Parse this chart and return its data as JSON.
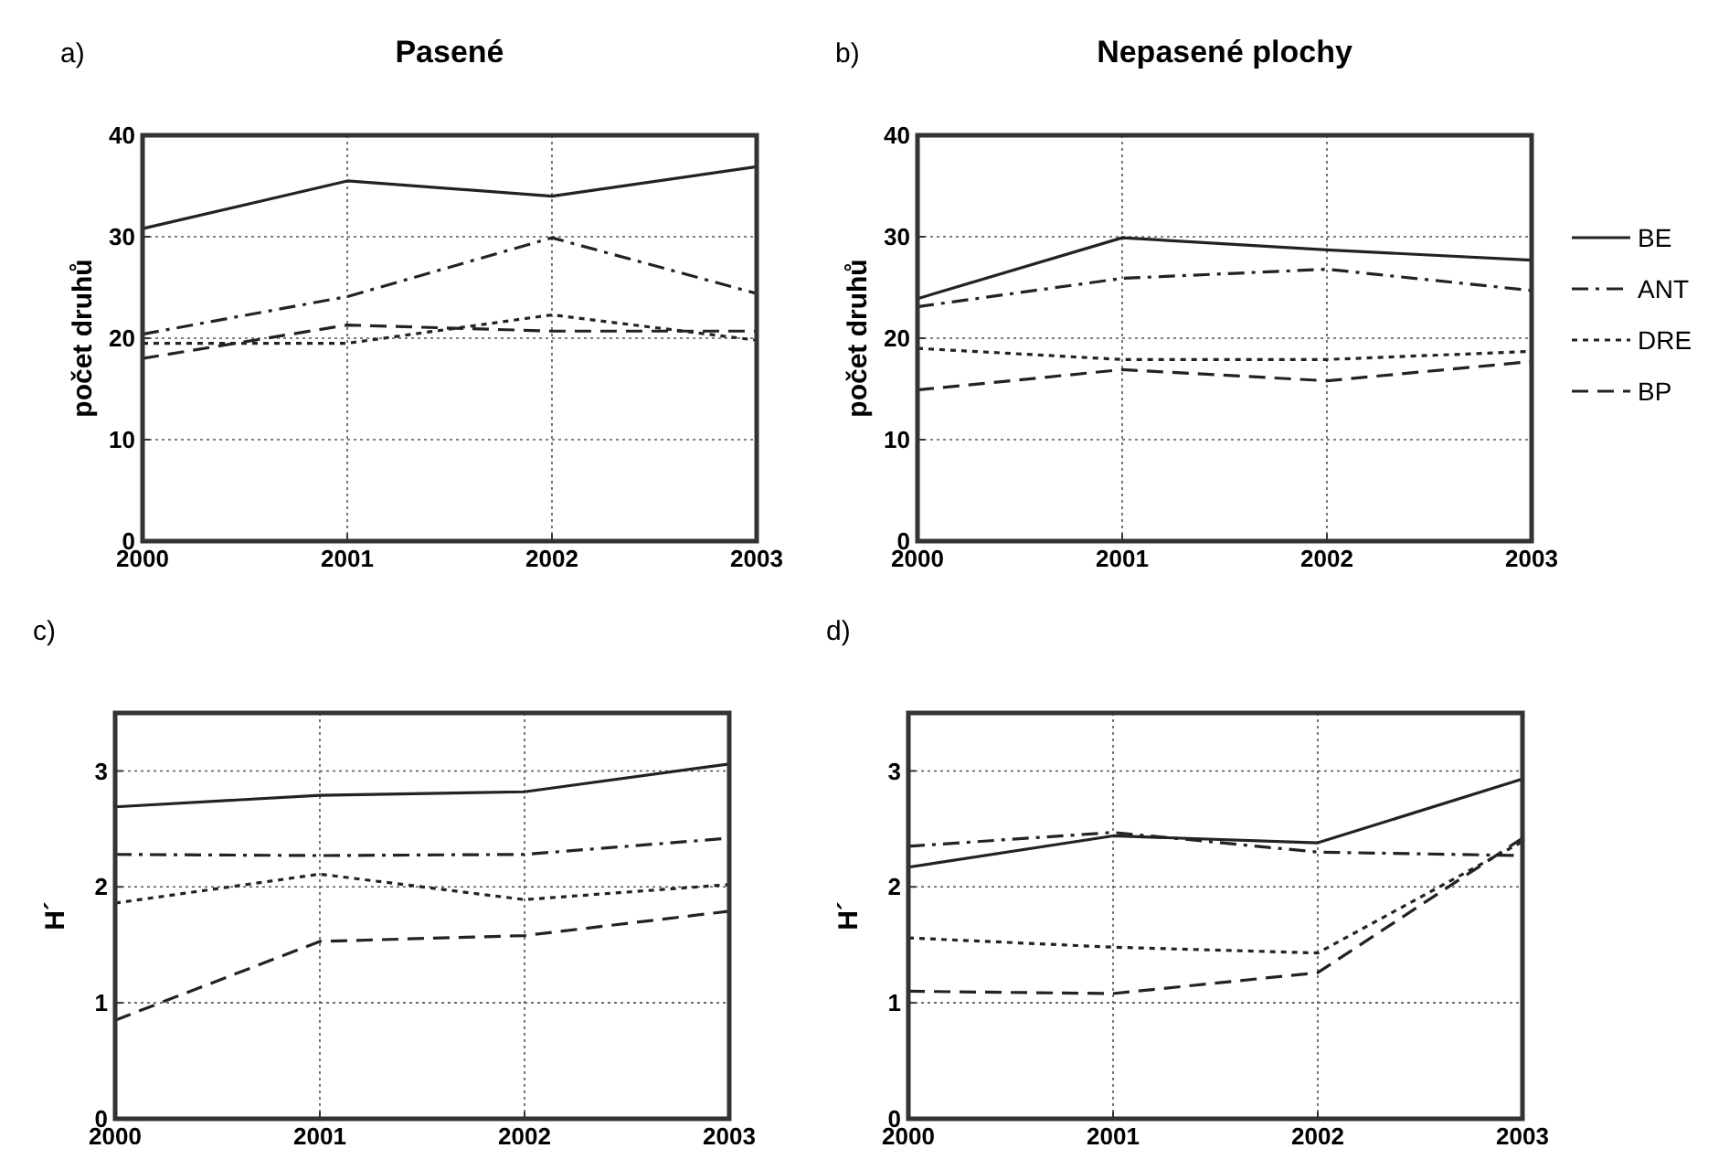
{
  "chart_data": [
    {
      "type": "line",
      "title": "Pasené",
      "annotations": [
        "a)"
      ],
      "ylabel": "počet druhů",
      "x": [
        2000,
        2001,
        2002,
        2003
      ],
      "xlim": [
        2000,
        2003
      ],
      "xticks": [
        2000,
        2001,
        2002,
        2003
      ],
      "ylim": [
        0,
        40
      ],
      "yticks": [
        0,
        10,
        20,
        30,
        40
      ],
      "grid": true,
      "legend": false,
      "series": [
        {
          "color": "#222222",
          "line_style": "solid",
          "values": [
            30.8,
            35.5,
            34,
            36.9
          ]
        },
        {
          "color": "#222222",
          "line_style": "dashdot",
          "values": [
            20.4,
            24.1,
            29.9,
            24.4
          ]
        },
        {
          "color": "#222222",
          "line_style": "dotted",
          "values": [
            19.5,
            19.5,
            22.3,
            19.8
          ]
        },
        {
          "color": "#222222",
          "line_style": "dashed",
          "values": [
            18,
            21.3,
            20.7,
            20.7
          ]
        }
      ]
    },
    {
      "type": "line",
      "title": "Nepasené plochy",
      "annotations": [
        "b)"
      ],
      "ylabel": "počet druhů",
      "x": [
        2000,
        2001,
        2002,
        2003
      ],
      "xlim": [
        2000,
        2003
      ],
      "xticks": [
        2000,
        2001,
        2002,
        2003
      ],
      "ylim": [
        0,
        40
      ],
      "yticks": [
        0,
        10,
        20,
        30,
        40
      ],
      "grid": true,
      "legend": "right",
      "series": [
        {
          "name": "BE",
          "color": "#222222",
          "line_style": "solid",
          "values": [
            23.9,
            29.9,
            28.7,
            27.7
          ]
        },
        {
          "name": "ANT",
          "color": "#222222",
          "line_style": "dashdot",
          "values": [
            23.1,
            25.9,
            26.8,
            24.7
          ]
        },
        {
          "name": "DRE",
          "color": "#222222",
          "line_style": "dotted",
          "values": [
            19,
            17.9,
            17.9,
            18.7
          ]
        },
        {
          "name": "BP",
          "color": "#222222",
          "line_style": "dashed",
          "values": [
            14.9,
            16.9,
            15.8,
            17.7
          ]
        }
      ]
    },
    {
      "type": "line",
      "annotations": [
        "c)"
      ],
      "ylabel": "H´",
      "x": [
        2000,
        2001,
        2002,
        2003
      ],
      "xlim": [
        2000,
        2003
      ],
      "xticks": [
        2000,
        2001,
        2002,
        2003
      ],
      "ylim": [
        0,
        3.5
      ],
      "yticks": [
        0,
        1,
        2,
        3
      ],
      "grid": true,
      "legend": false,
      "series": [
        {
          "color": "#222222",
          "line_style": "solid",
          "values": [
            2.69,
            2.79,
            2.82,
            3.06
          ]
        },
        {
          "color": "#222222",
          "line_style": "dashdot",
          "values": [
            2.28,
            2.27,
            2.28,
            2.42
          ]
        },
        {
          "color": "#222222",
          "line_style": "dotted",
          "values": [
            1.86,
            2.11,
            1.89,
            2.02
          ]
        },
        {
          "color": "#222222",
          "line_style": "dashed",
          "values": [
            0.85,
            1.53,
            1.58,
            1.79
          ]
        }
      ]
    },
    {
      "type": "line",
      "annotations": [
        "d)"
      ],
      "ylabel": "H´",
      "x": [
        2000,
        2001,
        2002,
        2003
      ],
      "xlim": [
        2000,
        2003
      ],
      "xticks": [
        2000,
        2001,
        2002,
        2003
      ],
      "ylim": [
        0,
        3.5
      ],
      "yticks": [
        0,
        1,
        2,
        3
      ],
      "grid": true,
      "legend": false,
      "series": [
        {
          "color": "#222222",
          "line_style": "solid",
          "values": [
            2.17,
            2.44,
            2.38,
            2.93
          ]
        },
        {
          "color": "#222222",
          "line_style": "dashdot",
          "values": [
            2.35,
            2.47,
            2.3,
            2.27
          ]
        },
        {
          "color": "#222222",
          "line_style": "dotted",
          "values": [
            1.56,
            1.48,
            1.43,
            2.39
          ]
        },
        {
          "color": "#222222",
          "line_style": "dashed",
          "values": [
            1.1,
            1.08,
            1.26,
            2.42
          ]
        }
      ]
    }
  ]
}
